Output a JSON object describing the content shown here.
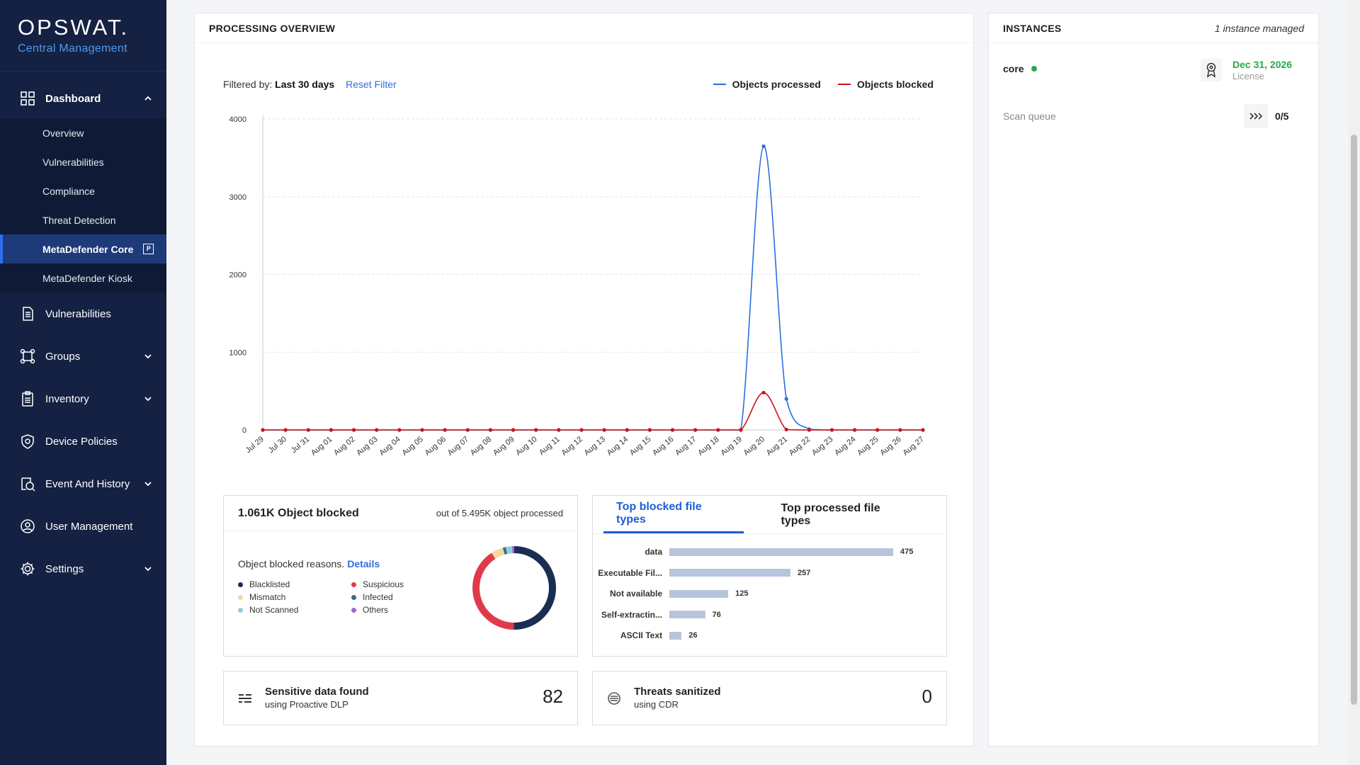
{
  "brand": {
    "name": "OPSWAT.",
    "product": "Central Management"
  },
  "sidebar": {
    "dashboard": {
      "label": "Dashboard",
      "items": [
        "Overview",
        "Vulnerabilities",
        "Compliance",
        "Threat Detection",
        "MetaDefender Core",
        "MetaDefender Kiosk"
      ],
      "active_badge": "P"
    },
    "items": [
      {
        "label": "Vulnerabilities",
        "icon": "document-icon"
      },
      {
        "label": "Groups",
        "icon": "groups-icon"
      },
      {
        "label": "Inventory",
        "icon": "clipboard-icon"
      },
      {
        "label": "Device Policies",
        "icon": "shield-icon"
      },
      {
        "label": "Event And History",
        "icon": "history-icon"
      },
      {
        "label": "User Management",
        "icon": "user-icon"
      },
      {
        "label": "Settings",
        "icon": "gear-icon"
      }
    ]
  },
  "overview": {
    "title": "PROCESSING OVERVIEW",
    "filter_prefix": "Filtered by:",
    "filter_value": "Last 30 days",
    "reset": "Reset Filter",
    "legend": {
      "processed": "Objects processed",
      "blocked": "Objects blocked"
    },
    "colors": {
      "processed": "#2a6fdc",
      "blocked": "#c8141a"
    }
  },
  "chart_data": {
    "type": "line",
    "x": [
      "Jul 29",
      "Jul 30",
      "Jul 31",
      "Aug 01",
      "Aug 02",
      "Aug 03",
      "Aug 04",
      "Aug 05",
      "Aug 06",
      "Aug 07",
      "Aug 08",
      "Aug 09",
      "Aug 10",
      "Aug 11",
      "Aug 12",
      "Aug 13",
      "Aug 14",
      "Aug 15",
      "Aug 16",
      "Aug 17",
      "Aug 18",
      "Aug 19",
      "Aug 20",
      "Aug 21",
      "Aug 22",
      "Aug 23",
      "Aug 24",
      "Aug 25",
      "Aug 26",
      "Aug 27"
    ],
    "series": [
      {
        "name": "Objects processed",
        "values": [
          0,
          0,
          0,
          0,
          0,
          0,
          0,
          0,
          0,
          0,
          0,
          0,
          0,
          0,
          0,
          0,
          0,
          0,
          0,
          0,
          0,
          0,
          3650,
          400,
          10,
          0,
          0,
          0,
          0,
          0
        ]
      },
      {
        "name": "Objects blocked",
        "values": [
          0,
          0,
          0,
          0,
          0,
          0,
          0,
          0,
          0,
          0,
          0,
          0,
          0,
          0,
          0,
          0,
          0,
          0,
          0,
          0,
          0,
          0,
          480,
          5,
          0,
          0,
          0,
          0,
          0,
          0
        ]
      }
    ],
    "y_ticks": [
      0,
      1000,
      2000,
      3000,
      4000
    ],
    "ylim": [
      0,
      4000
    ],
    "grid": true,
    "legend_position": "top-right"
  },
  "blocked": {
    "title": "1.061K Object blocked",
    "right": "out of 5.495K object processed",
    "reasons_label": "Object blocked reasons.",
    "details": "Details",
    "reasons": [
      {
        "label": "Blacklisted",
        "color": "#1a2d52"
      },
      {
        "label": "Suspicious",
        "color": "#e03a4a"
      },
      {
        "label": "Mismatch",
        "color": "#f5d7a0"
      },
      {
        "label": "Infected",
        "color": "#3c6b8a"
      },
      {
        "label": "Not Scanned",
        "color": "#8fd0d8"
      },
      {
        "label": "Others",
        "color": "#9b6bc9"
      }
    ]
  },
  "filetypes": {
    "tab_blocked": "Top blocked file types",
    "tab_processed": "Top processed file types",
    "bar_color": "#b8c4dc",
    "rows": [
      {
        "label": "data",
        "value": 475
      },
      {
        "label": "Executable Fil...",
        "value": 257
      },
      {
        "label": "Not available",
        "value": 125
      },
      {
        "label": "Self-extractin...",
        "value": 76
      },
      {
        "label": "ASCII Text",
        "value": 26
      }
    ]
  },
  "dlp": {
    "title": "Sensitive data found",
    "sub": "using Proactive DLP",
    "value": "82"
  },
  "cdr": {
    "title": "Threats sanitized",
    "sub": "using CDR",
    "value": "0"
  },
  "instances": {
    "title": "INSTANCES",
    "count": "1 instance managed",
    "core": "core",
    "license_date": "Dec 31, 2026",
    "license_label": "License",
    "queue_label": "Scan queue",
    "queue_value": "0/5",
    "status_color": "#2aa84a"
  }
}
